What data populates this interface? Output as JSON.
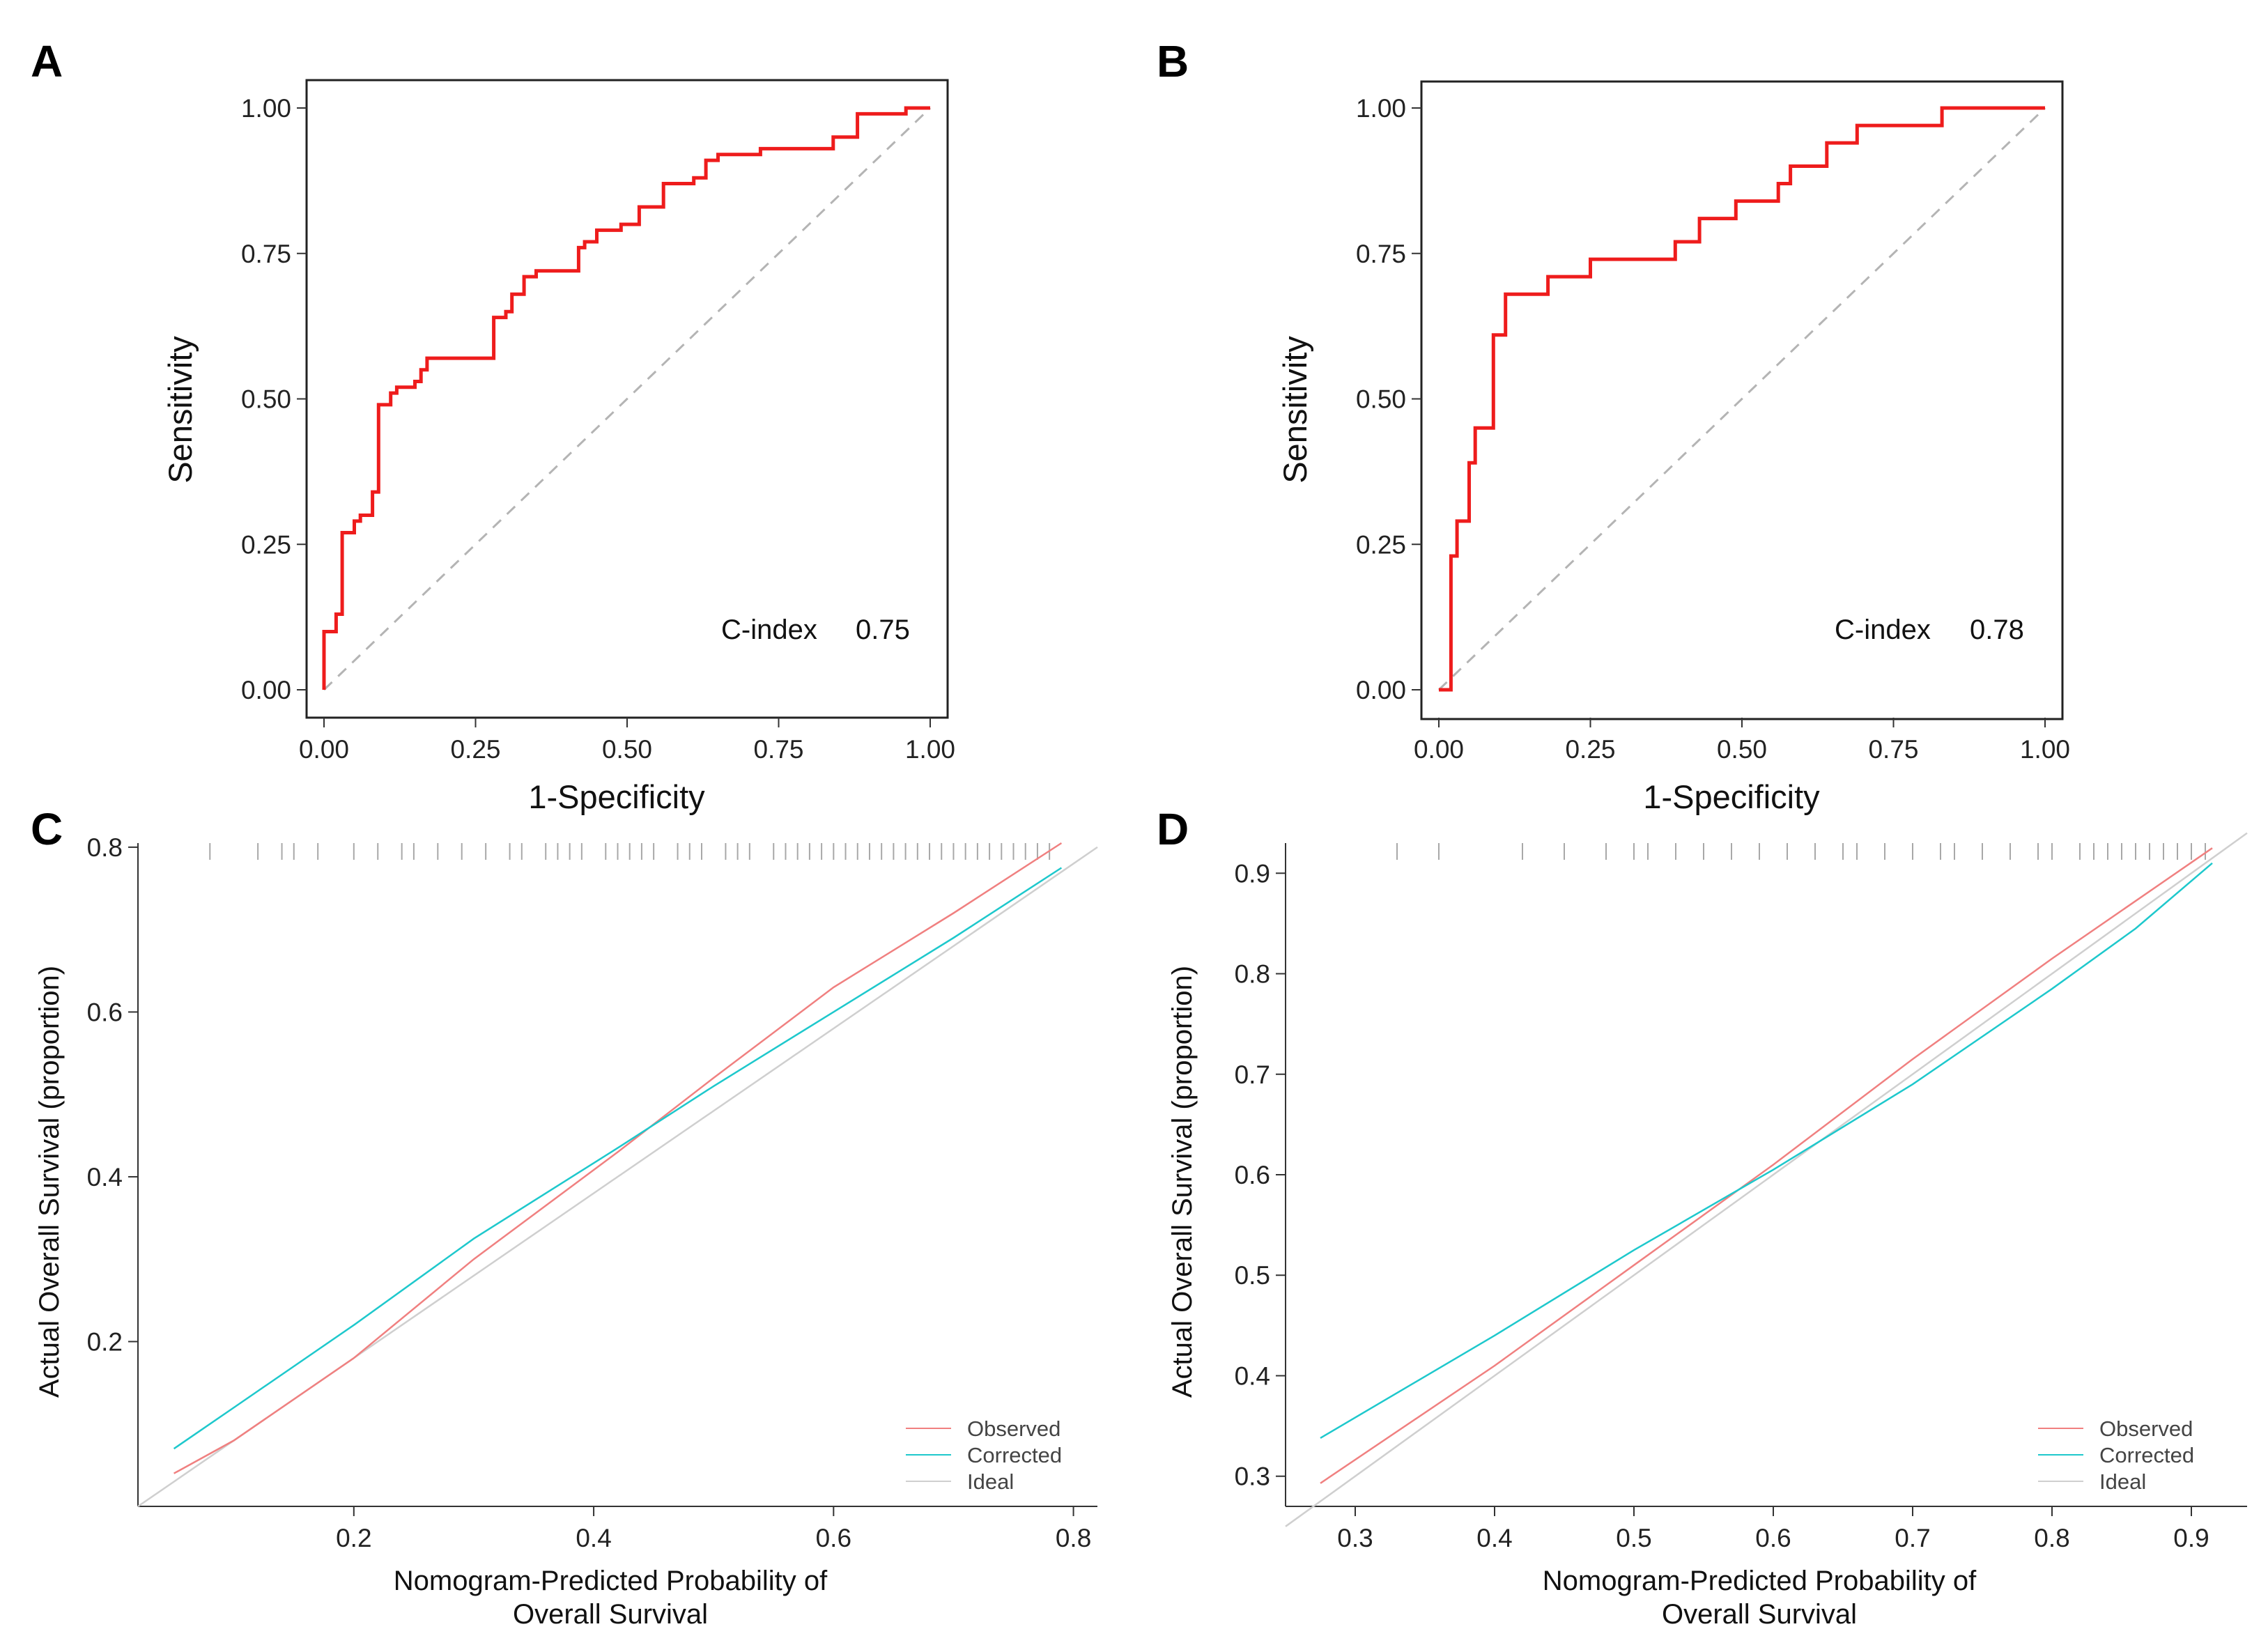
{
  "panels": {
    "A": {
      "letter": "A"
    },
    "B": {
      "letter": "B"
    },
    "C": {
      "letter": "C"
    },
    "D": {
      "letter": "D"
    }
  },
  "chart_data": [
    {
      "panel": "A",
      "type": "line",
      "title": "",
      "xlabel": "1-Specificity",
      "ylabel": "Sensitivity",
      "xlim": [
        0,
        1
      ],
      "ylim": [
        0,
        1
      ],
      "xticks": [
        "0.00",
        "0.25",
        "0.50",
        "0.75",
        "1.00"
      ],
      "yticks": [
        "0.00",
        "0.25",
        "0.50",
        "0.75",
        "1.00"
      ],
      "annotation": {
        "label": "C-index",
        "value": "0.75"
      },
      "series": [
        {
          "name": "ROC",
          "color": "#ee1c1c",
          "style": "step",
          "points": [
            [
              0.0,
              0.0
            ],
            [
              0.0,
              0.1
            ],
            [
              0.02,
              0.1
            ],
            [
              0.02,
              0.13
            ],
            [
              0.03,
              0.13
            ],
            [
              0.03,
              0.27
            ],
            [
              0.05,
              0.27
            ],
            [
              0.05,
              0.29
            ],
            [
              0.06,
              0.29
            ],
            [
              0.06,
              0.3
            ],
            [
              0.08,
              0.3
            ],
            [
              0.08,
              0.34
            ],
            [
              0.09,
              0.34
            ],
            [
              0.09,
              0.49
            ],
            [
              0.11,
              0.49
            ],
            [
              0.11,
              0.51
            ],
            [
              0.12,
              0.51
            ],
            [
              0.12,
              0.52
            ],
            [
              0.15,
              0.52
            ],
            [
              0.15,
              0.53
            ],
            [
              0.16,
              0.53
            ],
            [
              0.16,
              0.55
            ],
            [
              0.17,
              0.55
            ],
            [
              0.17,
              0.57
            ],
            [
              0.28,
              0.57
            ],
            [
              0.28,
              0.64
            ],
            [
              0.3,
              0.64
            ],
            [
              0.3,
              0.65
            ],
            [
              0.31,
              0.65
            ],
            [
              0.31,
              0.68
            ],
            [
              0.33,
              0.68
            ],
            [
              0.33,
              0.71
            ],
            [
              0.35,
              0.71
            ],
            [
              0.35,
              0.72
            ],
            [
              0.42,
              0.72
            ],
            [
              0.42,
              0.76
            ],
            [
              0.43,
              0.76
            ],
            [
              0.43,
              0.77
            ],
            [
              0.45,
              0.77
            ],
            [
              0.45,
              0.79
            ],
            [
              0.49,
              0.79
            ],
            [
              0.49,
              0.8
            ],
            [
              0.52,
              0.8
            ],
            [
              0.52,
              0.83
            ],
            [
              0.56,
              0.83
            ],
            [
              0.56,
              0.87
            ],
            [
              0.61,
              0.87
            ],
            [
              0.61,
              0.88
            ],
            [
              0.63,
              0.88
            ],
            [
              0.63,
              0.91
            ],
            [
              0.65,
              0.91
            ],
            [
              0.65,
              0.92
            ],
            [
              0.72,
              0.92
            ],
            [
              0.72,
              0.93
            ],
            [
              0.84,
              0.93
            ],
            [
              0.84,
              0.95
            ],
            [
              0.88,
              0.95
            ],
            [
              0.88,
              0.99
            ],
            [
              0.96,
              0.99
            ],
            [
              0.96,
              1.0
            ],
            [
              1.0,
              1.0
            ]
          ]
        },
        {
          "name": "Reference",
          "color": "#b4b4b4",
          "style": "dashed",
          "points": [
            [
              0,
              0
            ],
            [
              1,
              1
            ]
          ]
        }
      ]
    },
    {
      "panel": "B",
      "type": "line",
      "title": "",
      "xlabel": "1-Specificity",
      "ylabel": "Sensitivity",
      "xlim": [
        0,
        1
      ],
      "ylim": [
        0,
        1
      ],
      "xticks": [
        "0.00",
        "0.25",
        "0.50",
        "0.75",
        "1.00"
      ],
      "yticks": [
        "0.00",
        "0.25",
        "0.50",
        "0.75",
        "1.00"
      ],
      "annotation": {
        "label": "C-index",
        "value": "0.78"
      },
      "series": [
        {
          "name": "ROC",
          "color": "#ee1c1c",
          "style": "step",
          "points": [
            [
              0.0,
              0.0
            ],
            [
              0.02,
              0.0
            ],
            [
              0.02,
              0.23
            ],
            [
              0.03,
              0.23
            ],
            [
              0.03,
              0.29
            ],
            [
              0.05,
              0.29
            ],
            [
              0.05,
              0.39
            ],
            [
              0.06,
              0.39
            ],
            [
              0.06,
              0.45
            ],
            [
              0.09,
              0.45
            ],
            [
              0.09,
              0.61
            ],
            [
              0.11,
              0.61
            ],
            [
              0.11,
              0.68
            ],
            [
              0.18,
              0.68
            ],
            [
              0.18,
              0.71
            ],
            [
              0.25,
              0.71
            ],
            [
              0.25,
              0.74
            ],
            [
              0.39,
              0.74
            ],
            [
              0.39,
              0.77
            ],
            [
              0.43,
              0.77
            ],
            [
              0.43,
              0.81
            ],
            [
              0.49,
              0.81
            ],
            [
              0.49,
              0.84
            ],
            [
              0.56,
              0.84
            ],
            [
              0.56,
              0.87
            ],
            [
              0.58,
              0.87
            ],
            [
              0.58,
              0.9
            ],
            [
              0.64,
              0.9
            ],
            [
              0.64,
              0.94
            ],
            [
              0.69,
              0.94
            ],
            [
              0.69,
              0.97
            ],
            [
              0.83,
              0.97
            ],
            [
              0.83,
              1.0
            ],
            [
              1.0,
              1.0
            ]
          ]
        },
        {
          "name": "Reference",
          "color": "#b4b4b4",
          "style": "dashed",
          "points": [
            [
              0,
              0
            ],
            [
              1,
              1
            ]
          ]
        }
      ]
    },
    {
      "panel": "C",
      "type": "line",
      "title": "",
      "xlabel": [
        "Nomogram-Predicted Probability of",
        "Overall Survival"
      ],
      "ylabel": "Actual Overall Survival (proportion)",
      "xlim": [
        0.02,
        0.82
      ],
      "ylim": [
        0.0,
        0.805
      ],
      "xticks": [
        "0.2",
        "0.4",
        "0.6",
        "0.8"
      ],
      "yticks": [
        "0.2",
        "0.4",
        "0.6",
        "0.8"
      ],
      "legend": {
        "position": "bottom-right",
        "entries": [
          "Observed",
          "Corrected",
          "Ideal"
        ]
      },
      "series": [
        {
          "name": "Observed",
          "color": "#f08080",
          "points": [
            [
              0.05,
              0.04
            ],
            [
              0.1,
              0.08
            ],
            [
              0.2,
              0.18
            ],
            [
              0.3,
              0.3
            ],
            [
              0.42,
              0.43
            ],
            [
              0.5,
              0.52
            ],
            [
              0.6,
              0.63
            ],
            [
              0.7,
              0.72
            ],
            [
              0.79,
              0.805
            ]
          ]
        },
        {
          "name": "Corrected",
          "color": "#1ec8cc",
          "points": [
            [
              0.05,
              0.07
            ],
            [
              0.1,
              0.12
            ],
            [
              0.2,
              0.22
            ],
            [
              0.3,
              0.325
            ],
            [
              0.42,
              0.435
            ],
            [
              0.5,
              0.51
            ],
            [
              0.6,
              0.6
            ],
            [
              0.7,
              0.69
            ],
            [
              0.79,
              0.775
            ]
          ]
        },
        {
          "name": "Ideal",
          "color": "#cfcfcf",
          "points": [
            [
              0.02,
              0.0
            ],
            [
              0.82,
              0.8
            ]
          ]
        }
      ],
      "rug_x": [
        0.08,
        0.12,
        0.14,
        0.15,
        0.17,
        0.2,
        0.22,
        0.24,
        0.25,
        0.27,
        0.29,
        0.31,
        0.33,
        0.34,
        0.36,
        0.37,
        0.38,
        0.39,
        0.41,
        0.42,
        0.43,
        0.44,
        0.45,
        0.47,
        0.48,
        0.49,
        0.51,
        0.52,
        0.53,
        0.55,
        0.56,
        0.57,
        0.58,
        0.59,
        0.6,
        0.61,
        0.62,
        0.63,
        0.64,
        0.65,
        0.66,
        0.67,
        0.68,
        0.69,
        0.7,
        0.71,
        0.72,
        0.73,
        0.74,
        0.75,
        0.76,
        0.77,
        0.78
      ]
    },
    {
      "panel": "D",
      "type": "line",
      "title": "",
      "xlabel": [
        "Nomogram-Predicted Probability of",
        "Overall Survival"
      ],
      "ylabel": "Actual Overall Survival (proportion)",
      "xlim": [
        0.25,
        0.94
      ],
      "ylim": [
        0.27,
        0.93
      ],
      "xticks": [
        "0.3",
        "0.4",
        "0.5",
        "0.6",
        "0.7",
        "0.8",
        "0.9"
      ],
      "yticks": [
        "0.3",
        "0.4",
        "0.5",
        "0.6",
        "0.7",
        "0.8",
        "0.9"
      ],
      "legend": {
        "position": "bottom-right",
        "entries": [
          "Observed",
          "Corrected",
          "Ideal"
        ]
      },
      "series": [
        {
          "name": "Observed",
          "color": "#f08080",
          "points": [
            [
              0.275,
              0.293
            ],
            [
              0.4,
              0.41
            ],
            [
              0.5,
              0.51
            ],
            [
              0.6,
              0.61
            ],
            [
              0.7,
              0.715
            ],
            [
              0.8,
              0.815
            ],
            [
              0.915,
              0.925
            ]
          ]
        },
        {
          "name": "Corrected",
          "color": "#1ec8cc",
          "points": [
            [
              0.275,
              0.338
            ],
            [
              0.4,
              0.44
            ],
            [
              0.5,
              0.525
            ],
            [
              0.6,
              0.605
            ],
            [
              0.7,
              0.69
            ],
            [
              0.8,
              0.785
            ],
            [
              0.86,
              0.845
            ],
            [
              0.915,
              0.91
            ]
          ]
        },
        {
          "name": "Ideal",
          "color": "#cfcfcf",
          "points": [
            [
              0.25,
              0.25
            ],
            [
              0.94,
              0.94
            ]
          ]
        }
      ],
      "rug_x": [
        0.33,
        0.36,
        0.42,
        0.45,
        0.48,
        0.5,
        0.51,
        0.53,
        0.55,
        0.57,
        0.59,
        0.61,
        0.63,
        0.65,
        0.66,
        0.68,
        0.7,
        0.72,
        0.73,
        0.75,
        0.77,
        0.79,
        0.8,
        0.82,
        0.83,
        0.84,
        0.85,
        0.86,
        0.87,
        0.88,
        0.89,
        0.9,
        0.91
      ]
    }
  ]
}
